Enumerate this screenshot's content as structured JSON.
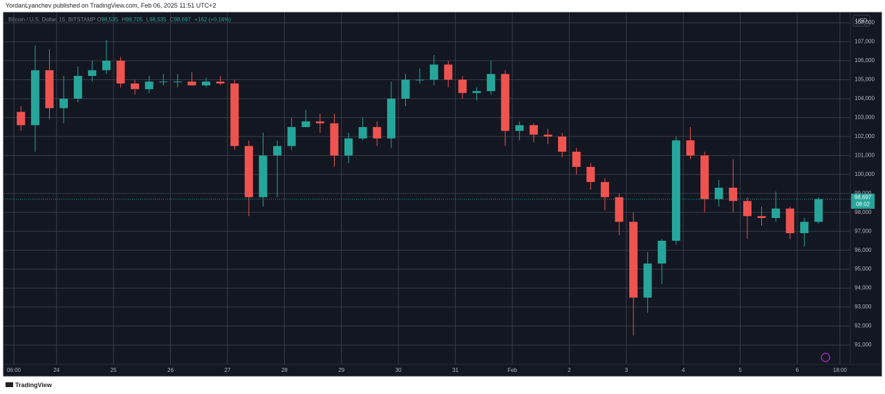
{
  "header": {
    "author_line": "YordanLyanchev published on TradingView.com, Feb 06, 2025 11:51 UTC+2"
  },
  "legend": {
    "symbol": "Bitcoin / U.S. Dollar, 15, BITSTAMP",
    "items": [
      {
        "label": "O",
        "value": "98,535"
      },
      {
        "label": "H",
        "value": "98,705"
      },
      {
        "label": "L",
        "value": "98,535"
      },
      {
        "label": "C",
        "value": "98,697"
      }
    ],
    "change": "+162 (+0.16%)"
  },
  "footer": {
    "brand": "TradingView"
  },
  "chart_data": {
    "type": "candlestick",
    "currency": "USD",
    "categories": [
      "06:00",
      null,
      null,
      "24",
      null,
      null,
      null,
      "25",
      null,
      null,
      null,
      "26",
      null,
      null,
      null,
      "27",
      null,
      null,
      null,
      "28",
      null,
      null,
      null,
      "29",
      null,
      null,
      null,
      "30",
      null,
      null,
      null,
      "31",
      null,
      null,
      null,
      "Feb",
      null,
      null,
      null,
      "2",
      null,
      null,
      null,
      "3",
      null,
      null,
      null,
      "4",
      null,
      null,
      null,
      "5",
      null,
      null,
      null,
      "6",
      null,
      null,
      "18:00"
    ],
    "open": [
      103300,
      102600,
      105500,
      103500,
      104000,
      105200,
      105500,
      106000,
      104800,
      104500,
      104900,
      104900,
      104900,
      104700,
      104900,
      104800,
      101500,
      98800,
      101000,
      101500,
      102500,
      102800,
      102700,
      101000,
      101900,
      102500,
      101900,
      104000,
      105000,
      105000,
      105800,
      105000,
      104300,
      104400,
      105300,
      102300,
      102600,
      102100,
      102000,
      101200,
      100400,
      99600,
      98800,
      97500,
      93500,
      95300,
      96500,
      101800,
      101000,
      98700,
      99300,
      98600,
      97800,
      97700,
      98200,
      96900,
      97500,
      null,
      null
    ],
    "high": [
      103600,
      106800,
      106600,
      105200,
      105700,
      106000,
      107100,
      106200,
      105000,
      105200,
      105300,
      105300,
      105400,
      105100,
      105200,
      105000,
      101800,
      102200,
      101800,
      103000,
      103400,
      103200,
      103200,
      102200,
      103000,
      102800,
      104900,
      105300,
      105600,
      106300,
      106000,
      105200,
      104600,
      106000,
      105500,
      102800,
      102700,
      102400,
      102200,
      101400,
      100600,
      99800,
      99000,
      98000,
      95900,
      96600,
      102000,
      102500,
      101200,
      99700,
      100800,
      98800,
      98300,
      99100,
      98300,
      97700,
      98800,
      null,
      null
    ],
    "low": [
      102300,
      101200,
      102900,
      102700,
      103800,
      104900,
      105300,
      104600,
      104200,
      104300,
      104700,
      104600,
      104700,
      104600,
      104700,
      101300,
      97800,
      98300,
      98800,
      101300,
      102500,
      102200,
      100400,
      100600,
      101800,
      101500,
      101400,
      103600,
      104800,
      104700,
      104600,
      104000,
      103900,
      104200,
      101500,
      101800,
      101700,
      101600,
      100900,
      100000,
      99200,
      98100,
      96800,
      91500,
      92700,
      94200,
      96300,
      100800,
      98000,
      98300,
      98000,
      96600,
      97300,
      97500,
      96600,
      96200,
      97400,
      null,
      null
    ],
    "close": [
      102600,
      105500,
      103500,
      104000,
      105200,
      105500,
      106000,
      104800,
      104500,
      104900,
      104900,
      104900,
      104700,
      104900,
      104800,
      101500,
      98800,
      101000,
      101500,
      102500,
      102800,
      102700,
      101000,
      101900,
      102500,
      101900,
      104000,
      105000,
      105000,
      105800,
      105000,
      104300,
      104400,
      105300,
      102300,
      102600,
      102100,
      102000,
      101200,
      100400,
      99600,
      98800,
      97500,
      93500,
      95300,
      96500,
      101800,
      101000,
      98700,
      99300,
      98600,
      97800,
      97700,
      98200,
      96900,
      97500,
      98697,
      null,
      null
    ],
    "up_color": "#26a69a",
    "down_color": "#ef5350",
    "ylim": [
      89980,
      108550
    ],
    "yticks": [
      {
        "value": 91000,
        "label": "91,000"
      },
      {
        "value": 92000,
        "label": "92,000"
      },
      {
        "value": 93000,
        "label": "93,000"
      },
      {
        "value": 94000,
        "label": "94,000"
      },
      {
        "value": 95000,
        "label": "95,000"
      },
      {
        "value": 96000,
        "label": "96,000"
      },
      {
        "value": 97000,
        "label": "97,000"
      },
      {
        "value": 98000,
        "label": "98,000"
      },
      {
        "value": 99000,
        "label": "99,000"
      },
      {
        "value": 100000,
        "label": "100,000"
      },
      {
        "value": 101000,
        "label": "101,000"
      },
      {
        "value": 102000,
        "label": "102,000"
      },
      {
        "value": 103000,
        "label": "103,000"
      },
      {
        "value": 104000,
        "label": "104,000"
      },
      {
        "value": 105000,
        "label": "105,000"
      },
      {
        "value": 106000,
        "label": "106,000"
      },
      {
        "value": 107000,
        "label": "107,000"
      },
      {
        "value": 108000,
        "label": "108,000"
      }
    ],
    "grid": true,
    "last_price": {
      "value": 98697,
      "label": "98,697"
    },
    "countdown": "08:02"
  }
}
